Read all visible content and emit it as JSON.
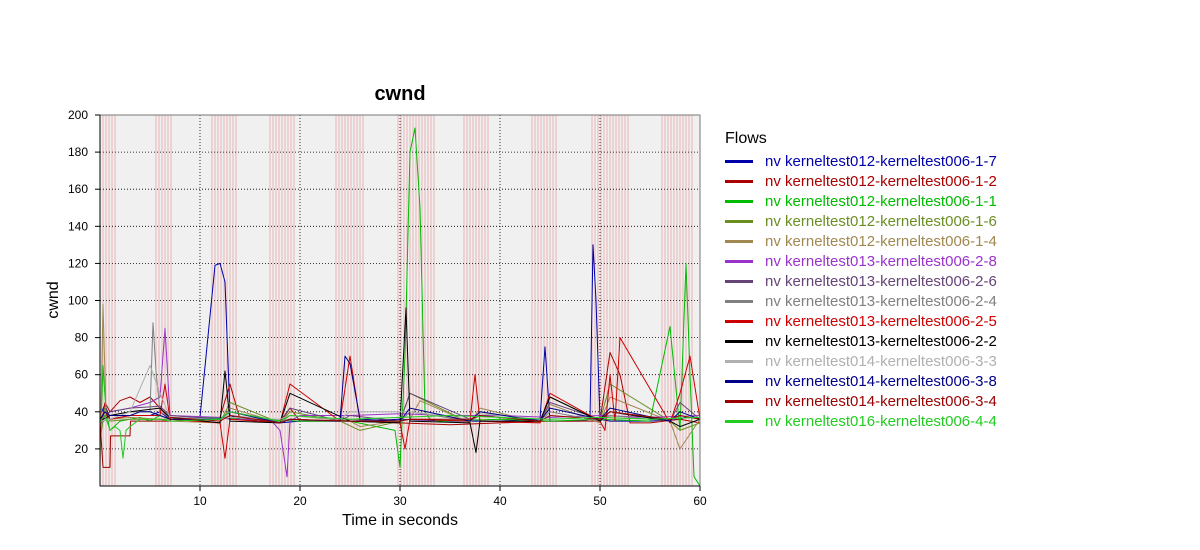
{
  "chart_data": {
    "type": "line",
    "title": "cwnd",
    "xlabel": "Time in seconds",
    "ylabel": "cwnd",
    "xlim": [
      0,
      60
    ],
    "ylim": [
      0,
      200
    ],
    "xticks": [
      10,
      20,
      30,
      40,
      50,
      60
    ],
    "yticks": [
      20,
      40,
      60,
      80,
      100,
      120,
      140,
      160,
      180,
      200
    ],
    "grid": true,
    "plot_background": "#f0f0f0",
    "marker_line_color": "#e8b4b4",
    "event_bands": [
      [
        0.0,
        1.5
      ],
      [
        5.6,
        7.2
      ],
      [
        11.2,
        13.6
      ],
      [
        17.0,
        19.6
      ],
      [
        23.6,
        26.5
      ],
      [
        29.8,
        33.4
      ],
      [
        36.4,
        39.0
      ],
      [
        43.2,
        45.6
      ],
      [
        49.2,
        52.8
      ],
      [
        56.2,
        59.4
      ]
    ],
    "legend": {
      "title": "Flows",
      "placement": "right"
    },
    "series": [
      {
        "name": "nv kerneltest012-kerneltest006-1-7",
        "color": "#0000aa",
        "x": [
          0,
          0.5,
          1,
          2,
          3,
          4,
          5,
          6,
          7,
          10,
          11.5,
          12,
          12.5,
          13,
          14,
          18,
          20,
          25,
          30,
          35,
          40,
          44,
          44.5,
          45,
          48,
          49,
          49.3,
          49.6,
          50,
          51,
          55,
          58,
          59,
          60
        ],
        "y": [
          38,
          44,
          36,
          37,
          38,
          38,
          38,
          40,
          36,
          37,
          119,
          120,
          110,
          38,
          36,
          34,
          35,
          35,
          36,
          35,
          35,
          36,
          75,
          35,
          35,
          36,
          130,
          100,
          36,
          35,
          35,
          36,
          38,
          36
        ]
      },
      {
        "name": "nv kerneltest012-kerneltest006-1-2",
        "color": "#aa0000",
        "x": [
          0,
          0.5,
          1,
          2,
          3,
          4,
          5,
          6,
          7,
          12,
          13,
          14,
          18,
          19,
          20,
          25,
          30,
          35,
          40,
          45,
          50,
          51,
          52,
          53,
          55,
          58,
          60
        ],
        "y": [
          30,
          45,
          40,
          46,
          48,
          45,
          48,
          42,
          36,
          37,
          55,
          36,
          34,
          42,
          35,
          35,
          34,
          33,
          34,
          35,
          35,
          72,
          60,
          34,
          34,
          36,
          34
        ]
      },
      {
        "name": "nv kerneltest012-kerneltest006-1-1",
        "color": "#00bb00",
        "x": [
          0,
          0.3,
          0.6,
          1,
          2,
          3,
          4,
          5,
          6,
          7,
          10,
          15,
          20,
          25,
          29.5,
          30,
          30.5,
          31,
          31.5,
          32,
          32.5,
          33,
          34,
          40,
          45,
          50,
          55,
          57,
          58,
          58.6,
          59,
          59.4,
          60
        ],
        "y": [
          20,
          65,
          40,
          30,
          35,
          36,
          37,
          35,
          38,
          36,
          37,
          36,
          35,
          35,
          30,
          10,
          70,
          180,
          193,
          150,
          40,
          36,
          35,
          36,
          35,
          36,
          35,
          86,
          30,
          120,
          60,
          5,
          0
        ]
      },
      {
        "name": "nv kerneltest012-kerneltest006-1-6",
        "color": "#6b8e23",
        "x": [
          0,
          0.5,
          1,
          3,
          6,
          7,
          12,
          13,
          18,
          19,
          24,
          26,
          30,
          31,
          37,
          38,
          44,
          45,
          50,
          51,
          57,
          58,
          60
        ],
        "y": [
          25,
          42,
          35,
          36,
          36,
          36,
          34,
          45,
          34,
          40,
          35,
          30,
          35,
          50,
          34,
          40,
          35,
          48,
          35,
          55,
          35,
          30,
          34
        ]
      },
      {
        "name": "nv kerneltest012-kerneltest006-1-4",
        "color": "#a08850",
        "x": [
          0,
          0.3,
          0.6,
          1,
          3,
          6,
          7,
          12,
          13,
          18,
          19,
          25,
          26,
          31,
          32,
          37,
          38,
          44,
          45,
          50,
          51,
          57,
          58,
          60
        ],
        "y": [
          10,
          98,
          40,
          36,
          37,
          36,
          35,
          34,
          42,
          34,
          38,
          35,
          32,
          36,
          46,
          34,
          42,
          34,
          44,
          34,
          48,
          35,
          20,
          36
        ]
      },
      {
        "name": "nv kerneltest013-kerneltest006-2-8",
        "color": "#9933cc",
        "x": [
          0,
          1,
          3,
          5,
          6,
          6.5,
          7,
          12,
          13,
          17,
          18,
          18.7,
          19,
          20,
          25,
          30,
          35,
          40,
          45,
          50,
          55,
          60
        ],
        "y": [
          36,
          40,
          42,
          45,
          48,
          85,
          38,
          37,
          36,
          36,
          30,
          5,
          35,
          38,
          38,
          39,
          38,
          38,
          37,
          38,
          37,
          38
        ]
      },
      {
        "name": "nv kerneltest013-kerneltest006-2-6",
        "color": "#664477",
        "x": [
          0,
          1,
          3,
          6,
          7,
          12,
          13,
          18,
          19,
          24,
          25,
          30,
          31,
          37,
          38,
          44,
          45,
          50,
          51,
          57,
          58,
          60
        ],
        "y": [
          35,
          40,
          42,
          43,
          38,
          36,
          40,
          35,
          42,
          35,
          38,
          35,
          50,
          36,
          38,
          35,
          45,
          36,
          40,
          35,
          45,
          36
        ]
      },
      {
        "name": "nv kerneltest013-kerneltest006-2-4",
        "color": "#808080",
        "x": [
          0,
          1,
          3,
          5,
          5.3,
          5.6,
          6,
          7,
          12,
          13,
          18,
          19,
          24,
          25,
          30,
          31,
          37,
          38,
          44,
          45,
          50,
          51,
          57,
          58,
          60
        ],
        "y": [
          33,
          38,
          40,
          40,
          88,
          62,
          40,
          37,
          36,
          38,
          35,
          36,
          35,
          36,
          35,
          40,
          35,
          38,
          35,
          40,
          35,
          38,
          35,
          38,
          36
        ]
      },
      {
        "name": "nv kerneltest013-kerneltest006-2-5",
        "color": "#cc0000",
        "x": [
          0,
          0.5,
          1,
          3,
          6,
          6.5,
          7,
          12,
          12.5,
          13,
          18,
          19,
          24,
          25,
          26,
          30,
          30.5,
          31,
          37,
          37.5,
          38,
          44,
          45,
          50,
          50.5,
          51,
          51.5,
          52,
          57,
          58,
          59,
          60
        ],
        "y": [
          35,
          40,
          36,
          38,
          38,
          55,
          36,
          34,
          15,
          36,
          34,
          55,
          35,
          70,
          35,
          34,
          20,
          36,
          35,
          60,
          35,
          34,
          50,
          35,
          30,
          60,
          35,
          80,
          34,
          50,
          70,
          36
        ]
      },
      {
        "name": "nv kerneltest013-kerneltest006-2-2",
        "color": "#000000",
        "x": [
          0,
          1,
          3,
          6,
          7,
          12,
          12.5,
          13,
          18,
          19,
          25,
          30,
          30.6,
          31,
          37,
          37.6,
          38,
          44,
          45,
          50,
          51,
          57,
          58,
          60
        ],
        "y": [
          35,
          38,
          40,
          42,
          37,
          34,
          62,
          35,
          34,
          50,
          35,
          34,
          96,
          35,
          34,
          18,
          35,
          35,
          48,
          35,
          40,
          35,
          32,
          36
        ]
      },
      {
        "name": "nv kerneltest014-kerneltest006-3-3",
        "color": "#b0b0b0",
        "x": [
          0,
          1,
          3,
          5,
          6,
          7,
          12,
          13,
          18,
          19,
          24,
          25,
          31,
          37,
          38,
          44,
          45,
          50,
          51,
          57,
          58,
          60
        ],
        "y": [
          35,
          36,
          40,
          65,
          50,
          37,
          36,
          37,
          36,
          38,
          36,
          40,
          40,
          36,
          39,
          36,
          38,
          36,
          40,
          36,
          38,
          37
        ]
      },
      {
        "name": "nv kerneltest014-kerneltest006-3-8",
        "color": "#000088",
        "x": [
          0,
          0.5,
          1,
          2,
          3,
          4,
          5,
          6,
          7,
          12,
          13,
          18,
          19,
          24,
          24.5,
          25,
          26,
          30,
          31,
          37,
          38,
          44,
          45,
          50,
          51,
          57,
          58,
          60
        ],
        "y": [
          36,
          40,
          38,
          38,
          38,
          40,
          40,
          38,
          36,
          36,
          40,
          34,
          36,
          35,
          70,
          66,
          36,
          35,
          42,
          35,
          40,
          35,
          42,
          36,
          42,
          35,
          40,
          36
        ]
      },
      {
        "name": "nv kerneltest014-kerneltest006-3-4",
        "color": "#990000",
        "x": [
          0,
          0.3,
          1,
          1.05,
          3,
          3.05,
          7,
          7.05,
          12,
          13,
          18,
          19,
          25,
          30,
          31,
          37,
          38,
          44,
          45,
          50,
          51,
          57,
          58,
          60
        ],
        "y": [
          35,
          10,
          10,
          27,
          27,
          35,
          35,
          37,
          35,
          38,
          34,
          36,
          35,
          35,
          36,
          36,
          38,
          35,
          38,
          36,
          40,
          36,
          38,
          36
        ]
      },
      {
        "name": "nv kerneltest016-kerneltest006-4-4",
        "color": "#22cc22",
        "x": [
          0,
          0.5,
          1,
          1.5,
          2,
          2.3,
          2.6,
          3,
          4,
          6,
          7,
          12,
          13,
          18,
          19,
          25,
          30,
          35,
          40,
          45,
          50,
          55,
          60
        ],
        "y": [
          35,
          38,
          30,
          32,
          30,
          15,
          30,
          32,
          36,
          36,
          35,
          36,
          40,
          35,
          38,
          36,
          37,
          38,
          37,
          36,
          37,
          36,
          37
        ]
      }
    ]
  }
}
